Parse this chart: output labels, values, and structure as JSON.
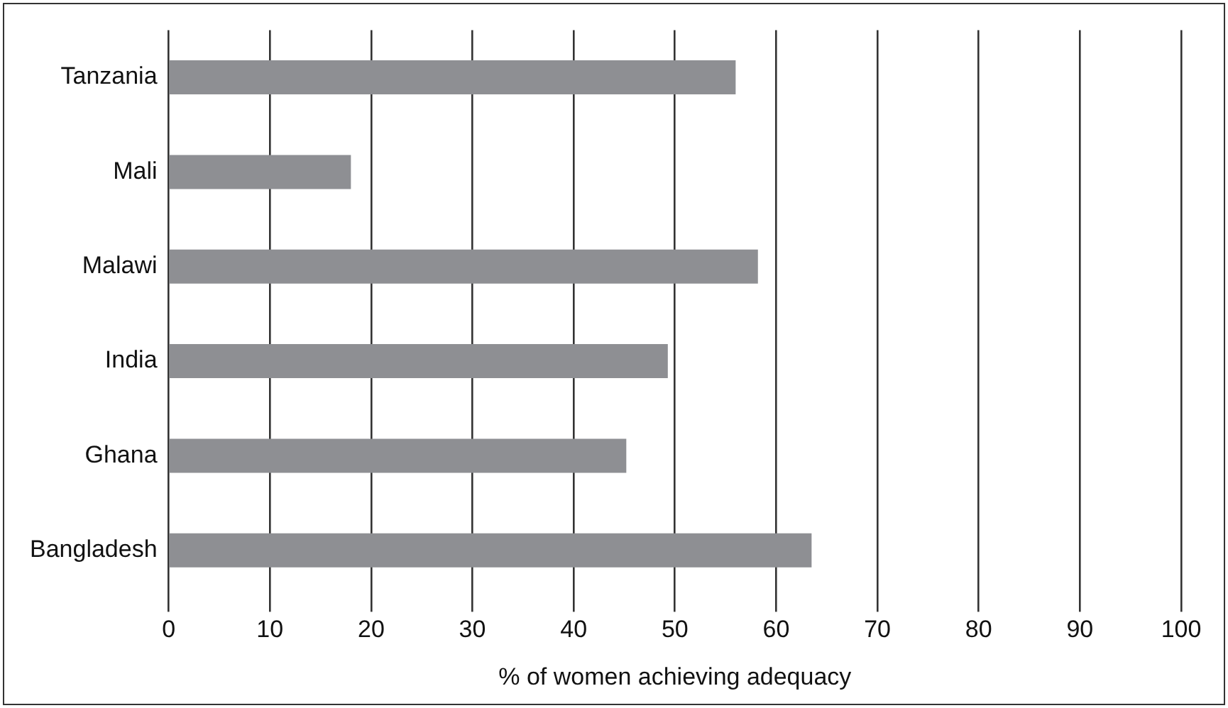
{
  "chart_data": {
    "type": "bar",
    "orientation": "horizontal",
    "categories": [
      "Tanzania",
      "Mali",
      "Malawi",
      "India",
      "Ghana",
      "Bangladesh"
    ],
    "values": [
      56,
      18,
      58.2,
      49.3,
      45.2,
      63.5
    ],
    "color": "#8e8f93",
    "xlabel": "% of women achieving adequacy",
    "xlim": [
      0,
      100
    ],
    "xticks": [
      0,
      10,
      20,
      30,
      40,
      50,
      60,
      70,
      80,
      90,
      100
    ],
    "grid": "x",
    "legend": false
  }
}
